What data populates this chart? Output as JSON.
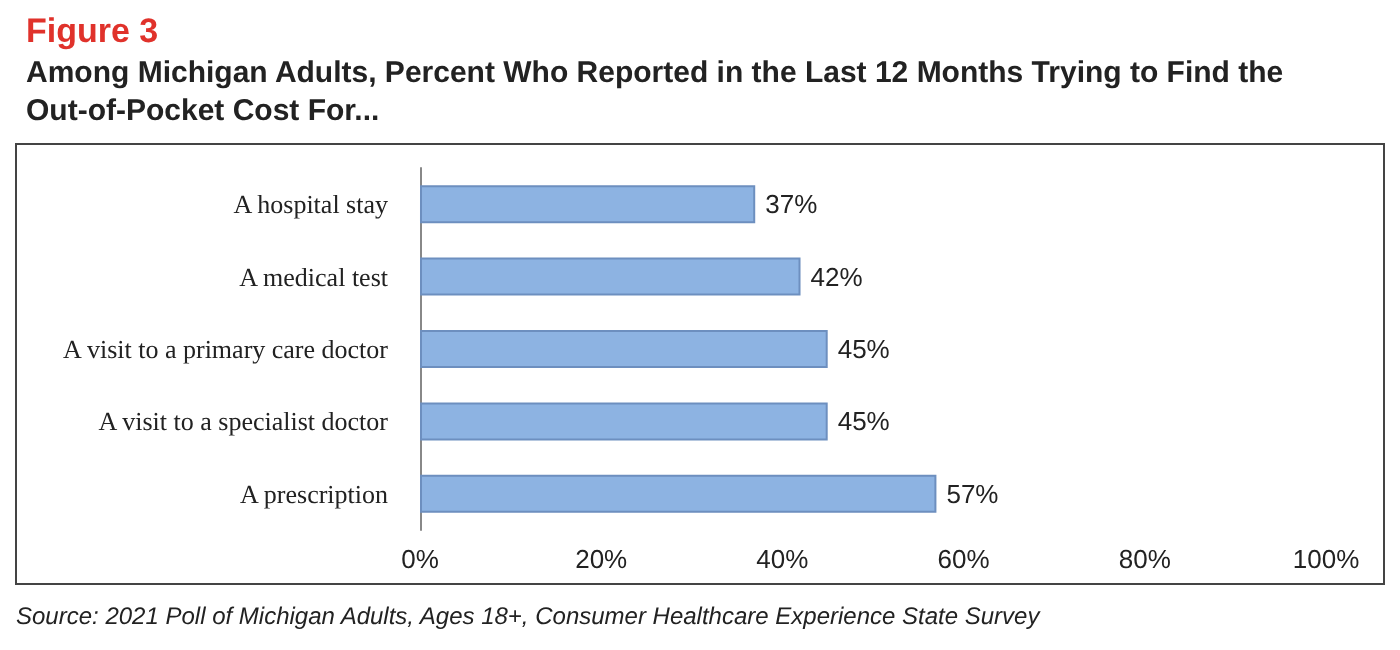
{
  "chart_data": {
    "type": "bar",
    "orientation": "horizontal",
    "title": "Figure 3",
    "subtitle": "Among Michigan Adults, Percent Who Reported in the Last 12 Months Trying to Find the Out-of-Pocket Cost For...",
    "categories": [
      "A hospital stay",
      "A medical test",
      "A visit to a primary care doctor",
      "A visit to a specialist doctor",
      "A prescription"
    ],
    "values": [
      37,
      42,
      45,
      45,
      57
    ],
    "value_labels": [
      "37%",
      "42%",
      "45%",
      "45%",
      "57%"
    ],
    "color": "#8db3e2",
    "xlim": [
      0,
      100
    ],
    "xticks": [
      {
        "value": 0,
        "label": "0%"
      },
      {
        "value": 20,
        "label": "20%"
      },
      {
        "value": 40,
        "label": "40%"
      },
      {
        "value": 60,
        "label": "60%"
      },
      {
        "value": 80,
        "label": "80%"
      },
      {
        "value": 100,
        "label": "100%"
      }
    ],
    "grid": false,
    "annotations": [
      "Source: 2021 Poll of Michigan Adults, Ages 18+, Consumer Healthcare Experience State Survey"
    ]
  }
}
